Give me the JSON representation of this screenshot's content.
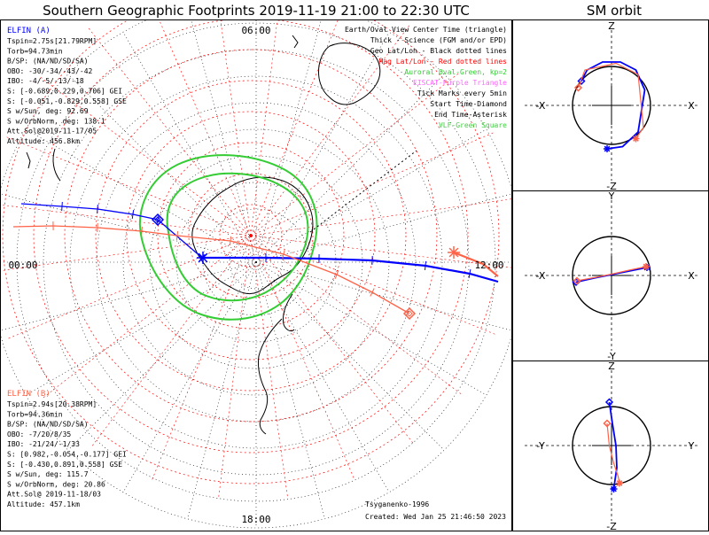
{
  "title_left": "Southern Geographic Footprints 2019-11-19 21:00 to 22:30 UTC",
  "title_right": "SM orbit",
  "colors": {
    "elfin_a": "#0000ff",
    "elfin_b": "#ff6347",
    "geo_grid": "#000000",
    "mag_grid": "#ff0000",
    "auroral_oval": "#33cc33",
    "eiscat": "#ff66ff",
    "vlf": "#44cc44",
    "sm_ref_orbit": "#aaaaaa"
  },
  "elfin_a": {
    "label": "ELFIN (A)",
    "lines": [
      "Tspin=2.75s[21.79RPM]",
      "Torb=94.73min",
      "B/SP: (NA/ND/SD/SA)",
      "OBO: -30/-34/-43/-42",
      "IBO: -4/-5/-13/-18",
      "S: [-0.689,0.229,0.706] GEI",
      "S: [-0.051,-0.829,0.558] GSE",
      "S w/Sun, deg: 92.69",
      "S w/OrbNorm, deg: 138.1",
      "Att.Sol@2019-11-17/05",
      "Altitude: 456.8km"
    ]
  },
  "elfin_b": {
    "label": "ELFIN (B)",
    "lines": [
      "Tspin=2.94s[20.38RPM]",
      "Torb=94.36min",
      "B/SP: (NA/ND/SD/SA)",
      "OBO: -7/20/8/35",
      "IBO: -21/24/-1/33",
      "S: [0.982,-0.054,-0.177] GEI",
      "S: [-0.430,0.891,0.558] GSE",
      "S w/Sun, deg: 115.7",
      "S w/OrbNorm, deg: 20.86",
      "Att.Sol@ 2019-11-18/03",
      "Altitude: 457.1km"
    ]
  },
  "legend": [
    {
      "text": "Earth/Oval View Center Time (triangle)",
      "color": "#000000"
    },
    {
      "text": "Thick - Science (FGM and/or EPD)",
      "color": "#000000"
    },
    {
      "text": "Geo Lat/Lon - Black dotted lines",
      "color": "#000000"
    },
    {
      "text": "Mag Lat/Lon - Red dotted lines",
      "color": "#ff0000"
    },
    {
      "text": "Auroral Oval-Green, kp=2",
      "color": "#33cc33"
    },
    {
      "text": "EISCAT-Purple Triangle",
      "color": "#ff66ff"
    },
    {
      "text": "Tick Marks every 5min",
      "color": "#000000"
    },
    {
      "text": "Start Time-Diamond",
      "color": "#000000"
    },
    {
      "text": "End Time-Asterisk",
      "color": "#000000"
    },
    {
      "text": "VLF-Green Square",
      "color": "#44cc44"
    }
  ],
  "footer": {
    "model": "Tsyganenko-1996",
    "created": "Created: Wed Jan 25 21:46:50 2023"
  },
  "chart_data": [
    {
      "type": "line",
      "kind": "polar-map",
      "title": "Southern Geographic Footprints 2019-11-19 21:00 to 22:30 UTC",
      "projection": "south-pole azimuthal",
      "local_time_labels": {
        "top": "06:00",
        "left": "00:00",
        "right": "12:00",
        "bottom": "18:00"
      },
      "series": [
        {
          "name": "ELFIN (A)",
          "color": "#0000ff",
          "start_marker": "diamond",
          "end_marker": "asterisk",
          "tick_interval_min": 5,
          "track": [
            [
              24,
              230
            ],
            [
              70,
              233
            ],
            [
              110,
              236
            ],
            [
              150,
              242
            ],
            [
              178,
              248
            ],
            [
              228,
              291
            ],
            [
              300,
              291
            ],
            [
              360,
              292
            ],
            [
              420,
              294
            ],
            [
              480,
              300
            ],
            [
              530,
              309
            ],
            [
              562,
              318
            ]
          ],
          "start_point": [
            178,
            248
          ],
          "end_point": [
            229,
            291
          ],
          "thick_segment": [
            [
              228,
              291
            ],
            [
              300,
              291
            ],
            [
              360,
              292
            ],
            [
              420,
              294
            ],
            [
              480,
              300
            ],
            [
              530,
              309
            ],
            [
              562,
              318
            ]
          ]
        },
        {
          "name": "ELFIN (B)",
          "color": "#ff6347",
          "start_marker": "diamond",
          "end_marker": "asterisk",
          "tick_interval_min": 5,
          "track": [
            [
              15,
              256
            ],
            [
              60,
              255
            ],
            [
              110,
              257
            ],
            [
              160,
              261
            ],
            [
              200,
              266
            ],
            [
              260,
              272
            ],
            [
              320,
              287
            ],
            [
              380,
              310
            ],
            [
              420,
              330
            ],
            [
              462,
              354
            ]
          ],
          "start_point": [
            462,
            354
          ],
          "end_point": [
            512,
            285
          ],
          "thick_segment": [
            [
              512,
              285
            ],
            [
              545,
              298
            ],
            [
              562,
              312
            ]
          ]
        }
      ]
    },
    {
      "type": "line",
      "kind": "orbit-projection",
      "title": "SM orbit",
      "panel": "X-Z",
      "axes": {
        "top": "Z",
        "bottom": "-Z",
        "left": "-X",
        "right": "X"
      },
      "series": [
        {
          "name": "ELFIN (A)",
          "color": "#0000ff",
          "x": [
            -0.68,
            -0.55,
            -0.2,
            0.2,
            0.55,
            0.75,
            0.6,
            0.25,
            -0.1
          ],
          "y": [
            0.55,
            0.8,
            0.98,
            0.98,
            0.8,
            0.35,
            -0.6,
            -0.93,
            -0.98
          ]
        },
        {
          "name": "ELFIN (B)",
          "color": "#ff6347",
          "x": [
            -0.75,
            -0.6,
            0.1,
            0.6,
            0.72,
            0.55
          ],
          "y": [
            0.4,
            0.8,
            0.95,
            0.7,
            -0.5,
            -0.75
          ]
        }
      ]
    },
    {
      "type": "line",
      "kind": "orbit-projection",
      "title": "SM orbit",
      "panel": "X-Y",
      "axes": {
        "top": "Y",
        "bottom": "-Y",
        "left": "-X",
        "right": "X"
      },
      "series": [
        {
          "name": "ELFIN (A)",
          "color": "#0000ff",
          "x": [
            -0.8,
            -0.4,
            0.0,
            0.4,
            0.8
          ],
          "y": [
            -0.15,
            -0.06,
            0.02,
            0.1,
            0.18
          ]
        },
        {
          "name": "ELFIN (B)",
          "color": "#ff6347",
          "x": [
            -0.78,
            -0.4,
            0.0,
            0.4,
            0.78
          ],
          "y": [
            -0.12,
            -0.05,
            0.03,
            0.12,
            0.2
          ]
        }
      ]
    },
    {
      "type": "line",
      "kind": "orbit-projection",
      "title": "SM orbit",
      "panel": "Y-Z",
      "axes": {
        "top": "Z",
        "bottom": "-Z",
        "left": "-Y",
        "right": "Y"
      },
      "series": [
        {
          "name": "ELFIN (A)",
          "color": "#0000ff",
          "x": [
            -0.05,
            0.02,
            0.1,
            0.12,
            0.05
          ],
          "y": [
            0.98,
            0.5,
            0.0,
            -0.5,
            -0.98
          ]
        },
        {
          "name": "ELFIN (B)",
          "color": "#ff6347",
          "x": [
            -0.1,
            -0.05,
            0.05,
            0.15,
            0.18
          ],
          "y": [
            0.5,
            0.0,
            -0.4,
            -0.7,
            -0.85
          ]
        }
      ]
    }
  ]
}
